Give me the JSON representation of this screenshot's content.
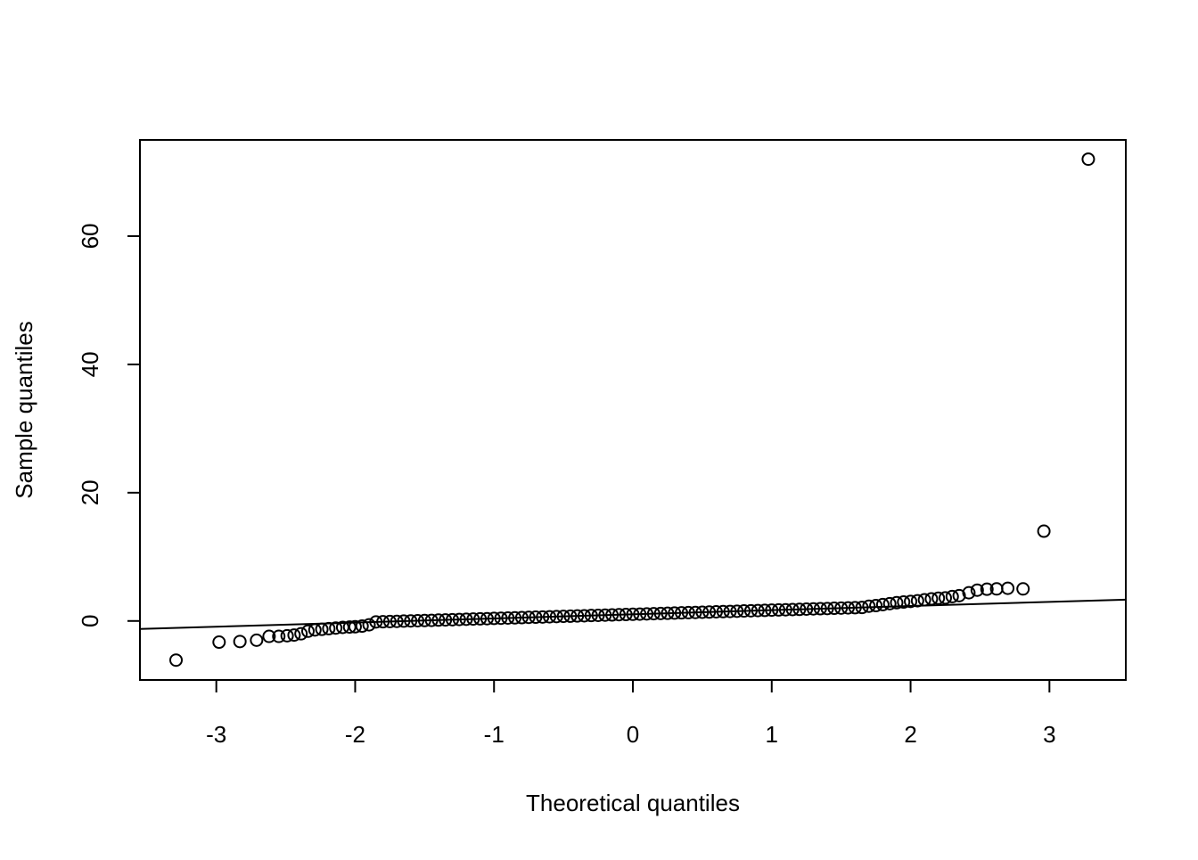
{
  "chart_data": {
    "type": "scatter",
    "x_label": "Theoretical quantiles",
    "y_label": "Sample quantiles",
    "x": [
      -3.29,
      -2.98,
      -2.83,
      -2.71,
      -2.62,
      -2.55,
      -2.49,
      -2.44,
      -2.39,
      -2.34,
      -2.29,
      -2.24,
      -2.19,
      -2.14,
      -2.09,
      -2.04,
      -2.0,
      -1.95,
      -1.9,
      -1.85,
      -1.8,
      -1.75,
      -1.7,
      -1.65,
      -1.6,
      -1.55,
      -1.5,
      -1.45,
      -1.4,
      -1.35,
      -1.3,
      -1.25,
      -1.2,
      -1.15,
      -1.1,
      -1.05,
      -1.0,
      -0.95,
      -0.9,
      -0.85,
      -0.8,
      -0.75,
      -0.7,
      -0.65,
      -0.6,
      -0.55,
      -0.5,
      -0.45,
      -0.4,
      -0.35,
      -0.3,
      -0.25,
      -0.2,
      -0.15,
      -0.1,
      -0.05,
      0.0,
      0.05,
      0.1,
      0.15,
      0.2,
      0.25,
      0.3,
      0.35,
      0.4,
      0.45,
      0.5,
      0.55,
      0.6,
      0.65,
      0.7,
      0.75,
      0.8,
      0.85,
      0.9,
      0.95,
      1.0,
      1.05,
      1.1,
      1.15,
      1.2,
      1.25,
      1.3,
      1.35,
      1.4,
      1.45,
      1.5,
      1.55,
      1.6,
      1.65,
      1.7,
      1.75,
      1.8,
      1.85,
      1.9,
      1.95,
      2.0,
      2.05,
      2.1,
      2.15,
      2.2,
      2.25,
      2.3,
      2.35,
      2.42,
      2.48,
      2.55,
      2.62,
      2.7,
      2.81,
      2.96,
      3.28
    ],
    "values": [
      -6.1,
      -3.3,
      -3.2,
      -3.0,
      -2.4,
      -2.4,
      -2.3,
      -2.2,
      -2.0,
      -1.6,
      -1.4,
      -1.3,
      -1.2,
      -1.1,
      -1.0,
      -0.95,
      -0.9,
      -0.8,
      -0.6,
      -0.15,
      -0.12,
      -0.09,
      -0.06,
      -0.02,
      0.01,
      0.04,
      0.07,
      0.1,
      0.14,
      0.17,
      0.2,
      0.23,
      0.27,
      0.3,
      0.33,
      0.36,
      0.4,
      0.43,
      0.46,
      0.49,
      0.52,
      0.56,
      0.59,
      0.62,
      0.65,
      0.69,
      0.72,
      0.75,
      0.78,
      0.81,
      0.85,
      0.88,
      0.91,
      0.94,
      0.98,
      1.01,
      1.04,
      1.07,
      1.1,
      1.14,
      1.17,
      1.2,
      1.23,
      1.27,
      1.3,
      1.33,
      1.36,
      1.39,
      1.43,
      1.46,
      1.49,
      1.52,
      1.56,
      1.59,
      1.62,
      1.65,
      1.69,
      1.72,
      1.75,
      1.78,
      1.81,
      1.85,
      1.88,
      1.91,
      1.94,
      1.98,
      2.01,
      2.04,
      2.07,
      2.1,
      2.3,
      2.4,
      2.55,
      2.7,
      2.85,
      2.95,
      3.05,
      3.15,
      3.3,
      3.45,
      3.55,
      3.6,
      3.8,
      3.95,
      4.4,
      4.8,
      4.95,
      5.0,
      5.1,
      5.0,
      14,
      72
    ],
    "color": "#000000",
    "reference_line": {
      "x": [
        -3.55,
        3.55
      ],
      "y": [
        -1.25,
        3.33
      ]
    },
    "xlim": [
      -3.55,
      3.55
    ],
    "ylim": [
      -9.2,
      75
    ],
    "xticks": [
      -3,
      -2,
      -1,
      0,
      1,
      2,
      3
    ],
    "yticks": [
      0,
      20,
      40,
      60
    ]
  }
}
